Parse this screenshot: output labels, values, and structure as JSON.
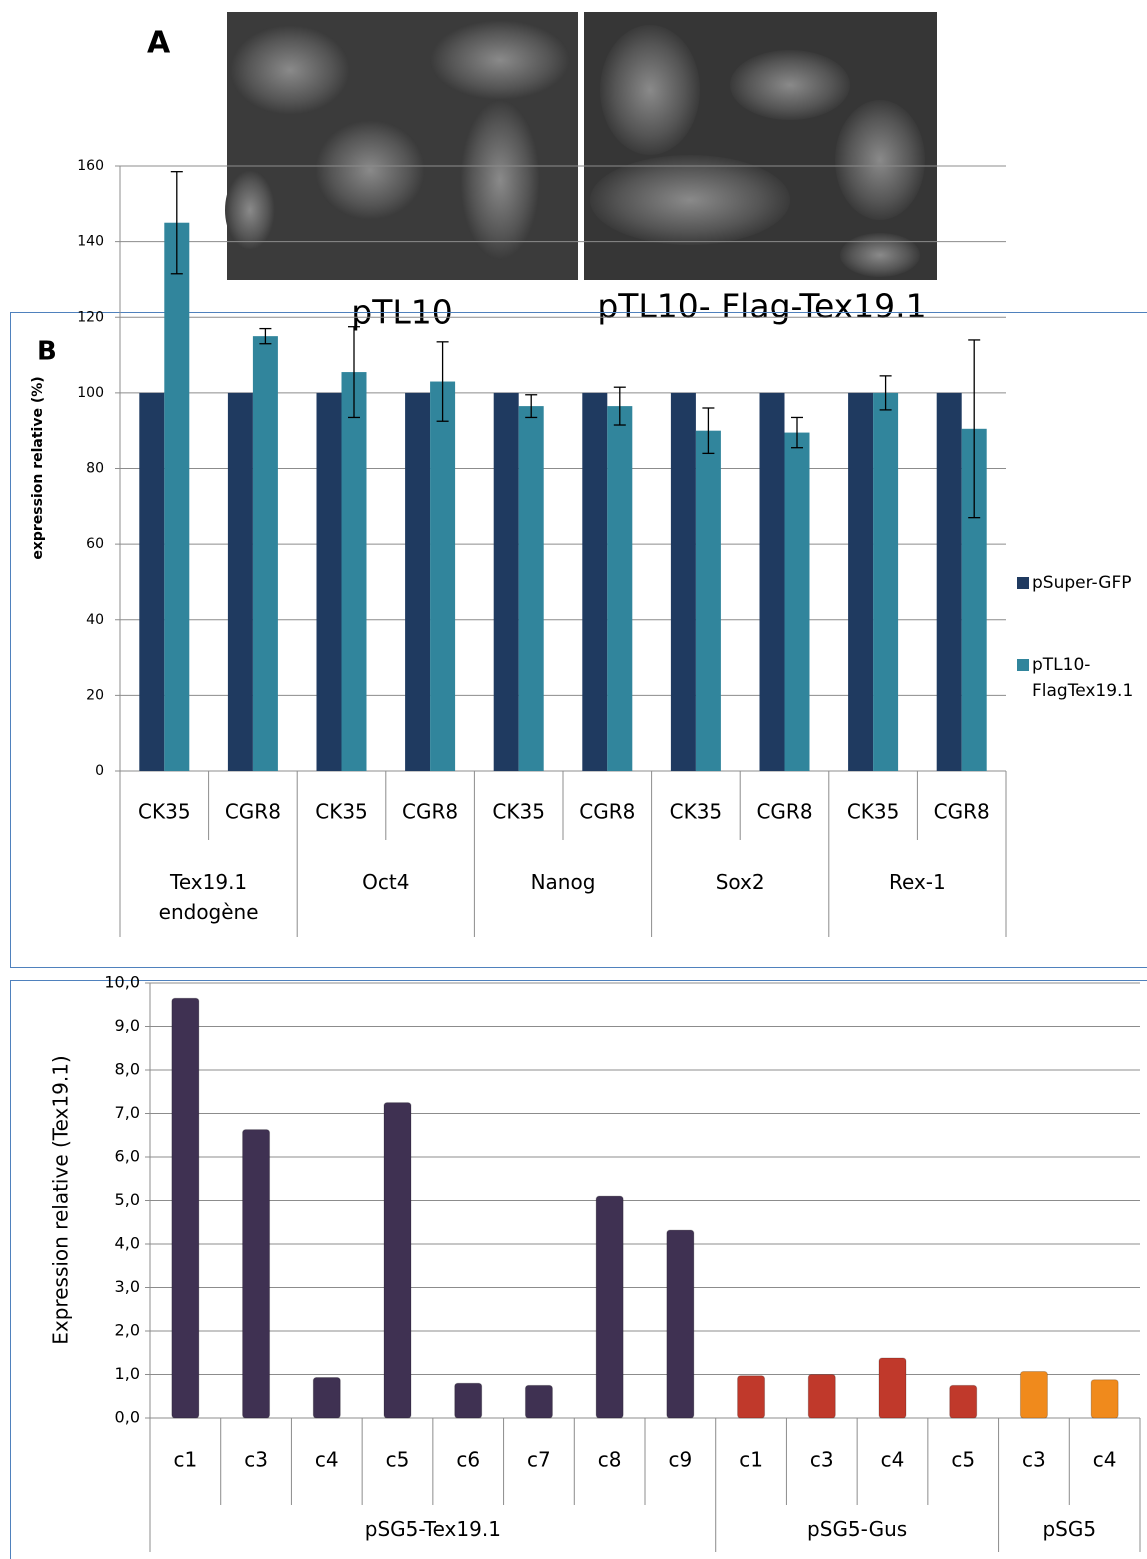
{
  "panel_a": {
    "label": "A",
    "images": [
      {
        "caption": "pTL10"
      },
      {
        "caption": "pTL10- Flag-Tex19.1"
      }
    ]
  },
  "chart_data": [
    {
      "type": "bar",
      "panel_label": "B",
      "ylabel": "expression relative (%)",
      "ylim": [
        0,
        160
      ],
      "yticks": [
        0,
        20,
        40,
        60,
        80,
        100,
        120,
        140,
        160
      ],
      "grid": true,
      "groups": [
        {
          "name": "Tex19.1 endogène",
          "categories": [
            "CK35",
            "CGR8"
          ]
        },
        {
          "name": "Oct4",
          "categories": [
            "CK35",
            "CGR8"
          ]
        },
        {
          "name": "Nanog",
          "categories": [
            "CK35",
            "CGR8"
          ]
        },
        {
          "name": "Sox2",
          "categories": [
            "CK35",
            "CGR8"
          ]
        },
        {
          "name": "Rex-1",
          "categories": [
            "CK35",
            "CGR8"
          ]
        }
      ],
      "series": [
        {
          "name": "pSuper-GFP",
          "color": "#1f3a60",
          "values": [
            100,
            100,
            100,
            100,
            100,
            100,
            100,
            100,
            100,
            100
          ]
        },
        {
          "name": "pTL10-FlagTex19.1",
          "color": "#31859c",
          "values": [
            145,
            115,
            105.5,
            103,
            96.5,
            96.5,
            90,
            89.5,
            100,
            90.5
          ],
          "errors": [
            13.5,
            2,
            12,
            10.5,
            3,
            5,
            6,
            4,
            4.5,
            23.5
          ]
        }
      ]
    },
    {
      "type": "bar",
      "ylabel": "Expression relative (Tex19.1)",
      "ylim": [
        0,
        10
      ],
      "yticks": [
        {
          "value": 0,
          "label": "0,0"
        },
        {
          "value": 1,
          "label": "1,0"
        },
        {
          "value": 2,
          "label": "2,0"
        },
        {
          "value": 3,
          "label": "3,0"
        },
        {
          "value": 4,
          "label": "4,0"
        },
        {
          "value": 5,
          "label": "5,0"
        },
        {
          "value": 6,
          "label": "6,0"
        },
        {
          "value": 7,
          "label": "7,0"
        },
        {
          "value": 8,
          "label": "8,0"
        },
        {
          "value": 9,
          "label": "9,0"
        },
        {
          "value": 10,
          "label": "10,0"
        }
      ],
      "grid": true,
      "groups": [
        {
          "name": "pSG5-Tex19.1",
          "color": "#3f3152",
          "categories": [
            "c1",
            "c3",
            "c4",
            "c5",
            "c6",
            "c7",
            "c8",
            "c9"
          ],
          "values": [
            9.65,
            6.63,
            0.93,
            7.25,
            0.8,
            0.75,
            5.1,
            4.32
          ]
        },
        {
          "name": "pSG5-Gus",
          "color": "#c0392b",
          "categories": [
            "c1",
            "c3",
            "c4",
            "c5"
          ],
          "values": [
            0.97,
            1.0,
            1.38,
            0.75
          ]
        },
        {
          "name": "pSG5",
          "color": "#f08a1c",
          "categories": [
            "c3",
            "c4"
          ],
          "values": [
            1.07,
            0.88
          ]
        }
      ]
    }
  ]
}
